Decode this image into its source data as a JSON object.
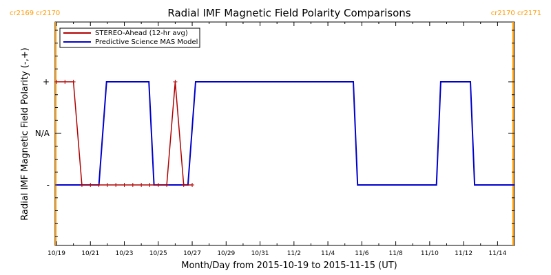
{
  "chart_data": {
    "type": "line",
    "title": "Radial IMF Magnetic Field Polarity Comparisons",
    "xlabel": "Month/Day from 2015-10-19 to 2015-11-15 (UT)",
    "ylabel": "Radial IMF Magnetic Field Polarity (-,+)",
    "x_tick_labels": [
      "10/19",
      "10/21",
      "10/23",
      "10/25",
      "10/27",
      "10/29",
      "10/31",
      "11/2",
      "11/4",
      "11/6",
      "11/8",
      "11/10",
      "11/12",
      "11/14"
    ],
    "y_tick_labels": [
      "+",
      "N/A",
      "-"
    ],
    "xlim": [
      "2015-10-19",
      "2015-11-15"
    ],
    "carrington": {
      "left": "cr2169 cr2170",
      "right": "cr2170 cr2171",
      "color": "#ff9900"
    },
    "legend_position": "top-left",
    "series": [
      {
        "name": "STEREO-Ahead (12-hr avg)",
        "color": "#b00000",
        "markers": true,
        "x": [
          0.0,
          0.5,
          1.0,
          1.5,
          2.0,
          2.5,
          3.0,
          3.5,
          4.0,
          4.5,
          5.0,
          5.5,
          6.0,
          6.5,
          7.0,
          7.5,
          8.0
        ],
        "values": [
          1,
          1,
          1,
          -1,
          -1,
          -1,
          -1,
          -1,
          -1,
          -1,
          -1,
          -1,
          -1,
          -1,
          1,
          -1,
          -1
        ]
      },
      {
        "name": "Predictive Science MAS Model",
        "color": "#0000cc",
        "markers": false,
        "x": [
          0.0,
          2.5,
          2.95,
          5.45,
          5.75,
          7.75,
          8.2,
          17.5,
          17.75,
          22.4,
          22.65,
          24.4,
          24.65,
          27.0
        ],
        "values": [
          -1,
          -1,
          1,
          1,
          -1,
          -1,
          1,
          1,
          -1,
          -1,
          1,
          1,
          -1,
          -1
        ]
      }
    ],
    "y_levels": {
      "+": 1,
      "N/A": 0,
      "-": -1
    }
  }
}
